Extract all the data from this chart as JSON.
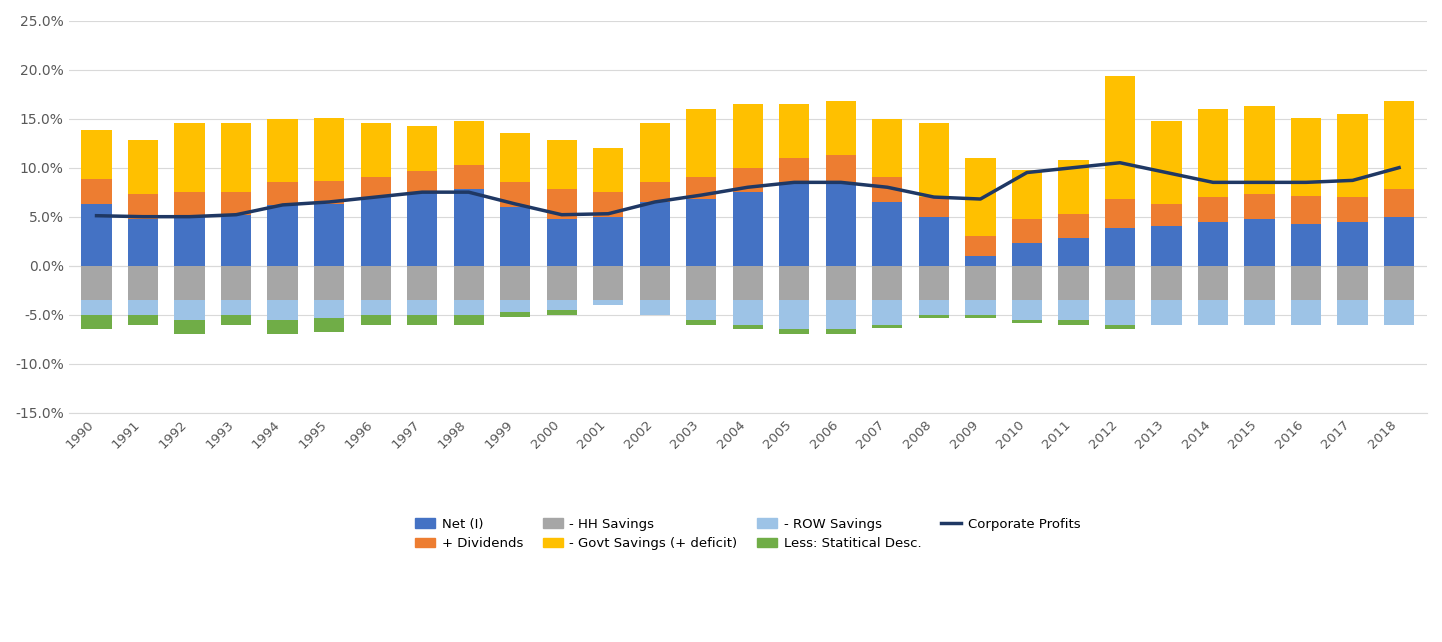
{
  "years": [
    1990,
    1991,
    1992,
    1993,
    1994,
    1995,
    1996,
    1997,
    1998,
    1999,
    2000,
    2001,
    2002,
    2003,
    2004,
    2005,
    2006,
    2007,
    2008,
    2009,
    2010,
    2011,
    2012,
    2013,
    2014,
    2015,
    2016,
    2017,
    2018
  ],
  "net_I": [
    6.3,
    4.8,
    5.0,
    5.2,
    6.2,
    6.3,
    7.0,
    7.5,
    7.8,
    6.0,
    4.8,
    5.0,
    6.5,
    6.8,
    7.5,
    8.5,
    8.3,
    6.5,
    5.0,
    1.0,
    2.3,
    2.8,
    3.8,
    4.0,
    4.5,
    4.8,
    4.3,
    4.5,
    5.0
  ],
  "dividends": [
    2.5,
    2.5,
    2.5,
    2.3,
    2.3,
    2.3,
    2.0,
    2.2,
    2.5,
    2.5,
    3.0,
    2.5,
    2.0,
    2.2,
    2.5,
    2.5,
    3.0,
    2.5,
    2.0,
    2.0,
    2.5,
    2.5,
    3.0,
    2.3,
    2.5,
    2.5,
    2.8,
    2.5,
    2.8
  ],
  "hh_savings": [
    -3.5,
    -3.5,
    -3.5,
    -3.5,
    -3.5,
    -3.5,
    -3.5,
    -3.5,
    -3.5,
    -3.5,
    -3.5,
    -3.5,
    -3.5,
    -3.5,
    -3.5,
    -3.5,
    -3.5,
    -3.5,
    -3.5,
    -3.5,
    -3.5,
    -3.5,
    -3.5,
    -3.5,
    -3.5,
    -3.5,
    -3.5,
    -3.5,
    -3.5
  ],
  "govt_savings": [
    5.0,
    5.5,
    7.0,
    7.0,
    6.5,
    6.5,
    5.5,
    4.5,
    4.5,
    5.0,
    5.0,
    4.5,
    6.0,
    7.0,
    6.5,
    5.5,
    5.5,
    6.0,
    7.5,
    8.0,
    5.0,
    5.5,
    12.5,
    8.5,
    9.0,
    9.0,
    8.0,
    8.5,
    9.0
  ],
  "row_savings": [
    -1.5,
    -1.5,
    -2.0,
    -1.5,
    -2.0,
    -1.8,
    -1.5,
    -1.5,
    -1.5,
    -1.2,
    -1.0,
    -0.5,
    -1.5,
    -2.0,
    -2.5,
    -3.0,
    -3.0,
    -2.5,
    -1.5,
    -1.5,
    -2.0,
    -2.0,
    -2.5,
    -2.5,
    -2.5,
    -2.5,
    -2.5,
    -2.5,
    -2.5
  ],
  "stat_disc": [
    -1.5,
    -1.0,
    -1.5,
    -1.0,
    -1.5,
    -1.5,
    -1.0,
    -1.0,
    -1.0,
    -0.5,
    -0.5,
    0.0,
    0.0,
    -0.5,
    -0.5,
    -0.5,
    -0.5,
    -0.3,
    -0.3,
    -0.3,
    -0.3,
    -0.5,
    -0.5,
    0.0,
    0.0,
    0.0,
    0.0,
    0.0,
    0.0
  ],
  "corp_profits": [
    5.1,
    5.0,
    5.0,
    5.2,
    6.2,
    6.5,
    7.0,
    7.5,
    7.5,
    6.3,
    5.2,
    5.3,
    6.5,
    7.2,
    8.0,
    8.5,
    8.5,
    8.0,
    7.0,
    6.8,
    9.5,
    10.0,
    10.5,
    9.5,
    8.5,
    8.5,
    8.5,
    8.7,
    10.0
  ],
  "colors": {
    "net_I": "#4472C4",
    "dividends": "#ED7D31",
    "hh_savings": "#A6A6A6",
    "govt_savings": "#FFC000",
    "row_savings": "#9DC3E6",
    "stat_disc": "#70AD47",
    "corp_profits": "#1F3864"
  },
  "ylim": [
    -15.0,
    25.0
  ],
  "ytick_vals": [
    -15.0,
    -10.0,
    -5.0,
    0.0,
    5.0,
    10.0,
    15.0,
    20.0,
    25.0
  ],
  "ytick_labels": [
    "-15.0%",
    "-10.0%",
    "-5.0%",
    "0.0%",
    "5.0%",
    "10.0%",
    "15.0%",
    "20.0%",
    "25.0%"
  ],
  "legend_row1": [
    {
      "label": "Net (I)",
      "type": "patch",
      "color": "#4472C4"
    },
    {
      "label": "+ Dividends",
      "type": "patch",
      "color": "#ED7D31"
    },
    {
      "label": "- HH Savings",
      "type": "patch",
      "color": "#A6A6A6"
    },
    {
      "label": "- Govt Savings (+ deficit)",
      "type": "patch",
      "color": "#FFC000"
    }
  ],
  "legend_row2": [
    {
      "label": "- ROW Savings",
      "type": "patch",
      "color": "#9DC3E6"
    },
    {
      "label": "Less: Statitical Desc.",
      "type": "patch",
      "color": "#70AD47"
    },
    {
      "label": "Corporate Profits",
      "type": "line",
      "color": "#1F3864"
    }
  ]
}
